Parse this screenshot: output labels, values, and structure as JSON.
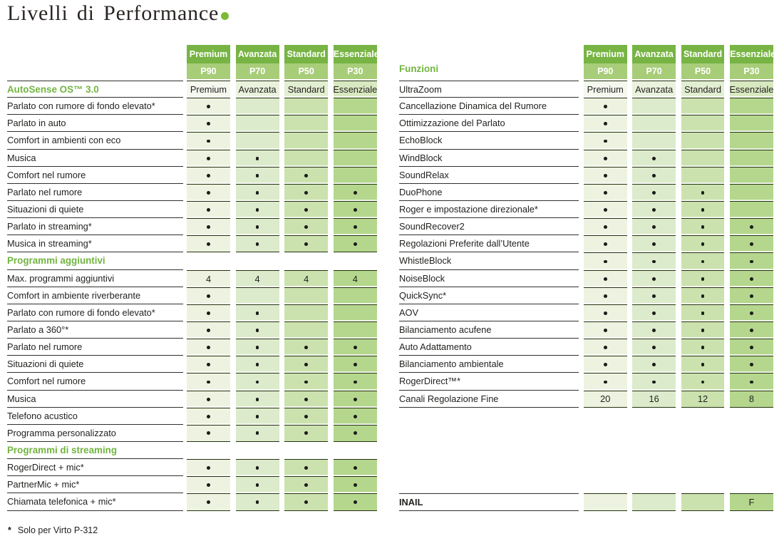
{
  "title": {
    "text": "Livelli di Performance"
  },
  "levels": [
    {
      "name": "Premium",
      "code": "P90"
    },
    {
      "name": "Avanzata",
      "code": "P70"
    },
    {
      "name": "Standard",
      "code": "P50"
    },
    {
      "name": "Essenziale",
      "code": "P30"
    }
  ],
  "colors": {
    "header_top": "#77b444",
    "header_bottom": "#a8cd79",
    "column_fills": [
      "#edf3e0",
      "#dcebcb",
      "#cbe2af",
      "#b4d78d"
    ],
    "column_fills_light": [
      "#f5f8ee",
      "#eaf2dd",
      "#e2eed1",
      "#d8e8c0"
    ],
    "accent_text": "#72b440",
    "cell_line": "#24300f",
    "label_line": "#30302d",
    "text": "#232220",
    "title_dot": "#7cba35"
  },
  "left_table": {
    "rows": [
      {
        "label": "AutoSense OS™ 3.0",
        "style": "section",
        "light": true,
        "cells": [
          "Premium",
          "Avanzata",
          "Standard",
          "Essenziale"
        ]
      },
      {
        "label": "Parlato con rumore di fondo elevato*",
        "cells": [
          "dot",
          "",
          "",
          ""
        ]
      },
      {
        "label": "Parlato in auto",
        "cells": [
          "dot",
          "",
          "",
          ""
        ]
      },
      {
        "label": "Comfort in ambienti con eco",
        "cells": [
          "dot",
          "",
          "",
          ""
        ]
      },
      {
        "label": "Musica",
        "cells": [
          "dot",
          "dot",
          "",
          ""
        ]
      },
      {
        "label": "Comfort nel rumore",
        "cells": [
          "dot",
          "dot",
          "dot",
          ""
        ]
      },
      {
        "label": "Parlato nel rumore",
        "cells": [
          "dot",
          "dot",
          "dot",
          "dot"
        ]
      },
      {
        "label": "Situazioni di quiete",
        "cells": [
          "dot",
          "dot",
          "dot",
          "dot"
        ]
      },
      {
        "label": "Parlato in streaming*",
        "cells": [
          "dot",
          "dot",
          "dot",
          "dot"
        ]
      },
      {
        "label": "Musica in streaming*",
        "cells": [
          "dot",
          "dot",
          "dot",
          "dot"
        ]
      },
      {
        "label": "Programmi aggiuntivi",
        "style": "section",
        "cells": null
      },
      {
        "label": "Max. programmi aggiuntivi",
        "cells": [
          "4",
          "4",
          "4",
          "4"
        ]
      },
      {
        "label": "Comfort in ambiente riverberante",
        "cells": [
          "dot",
          "",
          "",
          ""
        ]
      },
      {
        "label": "Parlato con rumore di fondo elevato*",
        "cells": [
          "dot",
          "dot",
          "",
          ""
        ]
      },
      {
        "label": "Parlato a 360°*",
        "cells": [
          "dot",
          "dot",
          "",
          ""
        ]
      },
      {
        "label": "Parlato nel rumore",
        "cells": [
          "dot",
          "dot",
          "dot",
          "dot"
        ]
      },
      {
        "label": "Situazioni di quiete",
        "cells": [
          "dot",
          "dot",
          "dot",
          "dot"
        ]
      },
      {
        "label": "Comfort nel rumore",
        "cells": [
          "dot",
          "dot",
          "dot",
          "dot"
        ]
      },
      {
        "label": "Musica",
        "cells": [
          "dot",
          "dot",
          "dot",
          "dot"
        ]
      },
      {
        "label": "Telefono acustico",
        "cells": [
          "dot",
          "dot",
          "dot",
          "dot"
        ]
      },
      {
        "label": "Programma personalizzato",
        "cells": [
          "dot",
          "dot",
          "dot",
          "dot"
        ]
      },
      {
        "label": "Programmi di streaming",
        "style": "section",
        "cells": null
      },
      {
        "label": "RogerDirect + mic*",
        "cells": [
          "dot",
          "dot",
          "dot",
          "dot"
        ]
      },
      {
        "label": "PartnerMic + mic*",
        "cells": [
          "dot",
          "dot",
          "dot",
          "dot"
        ]
      },
      {
        "label": "Chiamata telefonica + mic*",
        "cells": [
          "dot",
          "dot",
          "dot",
          "dot"
        ]
      }
    ]
  },
  "right_table": {
    "section_label": "Funzioni",
    "rows": [
      {
        "label": "UltraZoom",
        "light": true,
        "cells": [
          "Premium",
          "Avanzata",
          "Standard",
          "Essenziale"
        ]
      },
      {
        "label": "Cancellazione Dinamica del Rumore",
        "cells": [
          "dot",
          "",
          "",
          ""
        ]
      },
      {
        "label": "Ottimizzazione del Parlato",
        "cells": [
          "dot",
          "",
          "",
          ""
        ]
      },
      {
        "label": "EchoBlock",
        "cells": [
          "dot",
          "",
          "",
          ""
        ]
      },
      {
        "label": "WindBlock",
        "cells": [
          "dot",
          "dot",
          "",
          ""
        ]
      },
      {
        "label": "SoundRelax",
        "cells": [
          "dot",
          "dot",
          "",
          ""
        ]
      },
      {
        "label": "DuoPhone",
        "cells": [
          "dot",
          "dot",
          "dot",
          ""
        ]
      },
      {
        "label": "Roger e impostazione direzionale*",
        "cells": [
          "dot",
          "dot",
          "dot",
          ""
        ]
      },
      {
        "label": "SoundRecover2",
        "cells": [
          "dot",
          "dot",
          "dot",
          "dot"
        ]
      },
      {
        "label": "Regolazioni Preferite dall’Utente",
        "cells": [
          "dot",
          "dot",
          "dot",
          "dot"
        ]
      },
      {
        "label": "WhistleBlock",
        "cells": [
          "dot",
          "dot",
          "dot",
          "dot"
        ]
      },
      {
        "label": "NoiseBlock",
        "cells": [
          "dot",
          "dot",
          "dot",
          "dot"
        ]
      },
      {
        "label": "QuickSync*",
        "cells": [
          "dot",
          "dot",
          "dot",
          "dot"
        ]
      },
      {
        "label": "AOV",
        "cells": [
          "dot",
          "dot",
          "dot",
          "dot"
        ]
      },
      {
        "label": "Bilanciamento acufene",
        "cells": [
          "dot",
          "dot",
          "dot",
          "dot"
        ]
      },
      {
        "label": "Auto Adattamento",
        "cells": [
          "dot",
          "dot",
          "dot",
          "dot"
        ]
      },
      {
        "label": "Bilanciamento ambientale",
        "cells": [
          "dot",
          "dot",
          "dot",
          "dot"
        ]
      },
      {
        "label": "RogerDirect™*",
        "cells": [
          "dot",
          "dot",
          "dot",
          "dot"
        ]
      },
      {
        "label": "Canali Regolazione Fine",
        "cells": [
          "20",
          "16",
          "12",
          "8"
        ]
      },
      {
        "label": "INAIL",
        "style": "bold",
        "gap_before": true,
        "cells": [
          "",
          "",
          "",
          "F"
        ]
      }
    ]
  },
  "footnote": {
    "marker": "*",
    "text": "Solo per Virto P-312"
  }
}
